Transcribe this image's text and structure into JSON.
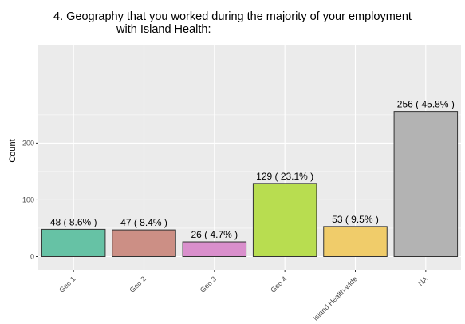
{
  "chart_data": {
    "type": "bar",
    "title": "4. Geography that you worked during the majority of your employment",
    "subtitle": "with Island Health:",
    "xlabel": "",
    "ylabel": "Count",
    "ylim": [
      0,
      270
    ],
    "yticks": [
      0,
      100,
      200
    ],
    "grid": true,
    "legend": "none",
    "categories": [
      "Geo 1",
      "Geo 2",
      "Geo 3",
      "Geo 4",
      "Island Health-wide",
      "NA"
    ],
    "values": [
      48,
      47,
      26,
      129,
      53,
      256
    ],
    "data_labels": [
      "48 ( 8.6% )",
      "47 ( 8.4% )",
      "26 ( 4.7% )",
      "129 ( 23.1% )",
      "53 ( 9.5% )",
      "256 ( 45.8% )"
    ],
    "colors": [
      "#66c2a5",
      "#cc8f85",
      "#d98fcc",
      "#b8dd50",
      "#f0cc6a",
      "#b3b3b3"
    ],
    "panel_background": "#ebebeb",
    "gridline_color": "#ffffff"
  }
}
